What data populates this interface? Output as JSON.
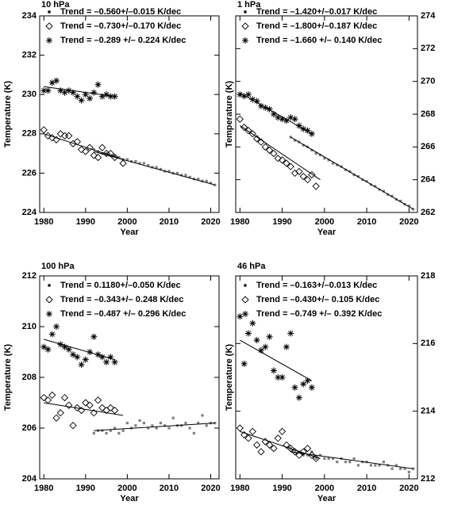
{
  "chart_data": [
    {
      "type": "scatter",
      "title": "10 hPa",
      "xlabel": "Year",
      "ylabel": "Temperature (K)",
      "y_axis_side": "left",
      "xlim": [
        1979,
        2022
      ],
      "xticks": [
        1980,
        1990,
        2000,
        2010,
        2020
      ],
      "ylim": [
        224,
        234
      ],
      "yticks": [
        224,
        226,
        228,
        230,
        232,
        234
      ],
      "series": [
        {
          "name": "Trend = –0.560+/–0.015 K/dec",
          "color": "#555555",
          "marker": "dot",
          "marker_color": "#808080",
          "x": [
            1992,
            1993,
            1994,
            1995,
            1996,
            1997,
            1998,
            1999,
            2000,
            2001,
            2002,
            2003,
            2004,
            2005,
            2006,
            2007,
            2008,
            2009,
            2010,
            2011,
            2012,
            2013,
            2014,
            2015,
            2016,
            2017,
            2018,
            2019,
            2020,
            2021
          ],
          "values": [
            227.2,
            227.1,
            227.0,
            227.0,
            226.9,
            226.9,
            226.8,
            226.7,
            226.7,
            226.6,
            226.6,
            226.5,
            226.5,
            226.4,
            226.3,
            226.3,
            226.2,
            226.1,
            226.1,
            226.0,
            226.0,
            225.9,
            225.9,
            225.8,
            225.7,
            225.7,
            225.6,
            225.6,
            225.5,
            225.4
          ],
          "fit_x": [
            1992,
            2021
          ],
          "fit": [
            227.1,
            225.4
          ]
        },
        {
          "name": "Trend = –0.730+/–0.170 K/dec",
          "color": "#a0a0a0",
          "marker": "diamond",
          "marker_color": "#000000",
          "x": [
            1980,
            1981,
            1982,
            1983,
            1984,
            1985,
            1986,
            1987,
            1988,
            1989,
            1990,
            1991,
            1992,
            1993,
            1994,
            1995,
            1996,
            1997,
            1999
          ],
          "values": [
            228.2,
            227.9,
            227.8,
            227.7,
            228.0,
            227.9,
            227.9,
            227.5,
            227.6,
            227.2,
            227.1,
            227.3,
            226.9,
            226.8,
            227.3,
            227.0,
            227.0,
            226.8,
            226.5
          ],
          "fit_x": [
            1980,
            1999
          ],
          "fit": [
            228.0,
            226.7
          ]
        },
        {
          "name": "Trend = –0.289 +/– 0.224 K/dec",
          "color": "#000000",
          "marker": "asterisk",
          "marker_color": "#000000",
          "x": [
            1980,
            1981,
            1982,
            1983,
            1984,
            1985,
            1986,
            1987,
            1988,
            1989,
            1990,
            1991,
            1992,
            1993,
            1994,
            1995,
            1996,
            1997
          ],
          "values": [
            230.2,
            230.2,
            230.6,
            230.7,
            230.2,
            230.1,
            230.2,
            230.1,
            229.9,
            229.7,
            230.0,
            229.8,
            230.1,
            230.5,
            229.9,
            230.0,
            229.9,
            229.9
          ],
          "fit_x": [
            1980,
            1997
          ],
          "fit": [
            230.4,
            229.9
          ]
        }
      ]
    },
    {
      "type": "scatter",
      "title": "1 hPa",
      "xlabel": "Year",
      "ylabel": "Temperature (K)",
      "y_axis_side": "right",
      "xlim": [
        1979,
        2022
      ],
      "xticks": [
        1980,
        1990,
        2000,
        2010,
        2020
      ],
      "ylim": [
        262,
        274
      ],
      "yticks": [
        262,
        264,
        266,
        268,
        270,
        272,
        274
      ],
      "series": [
        {
          "name": "Trend = –1.420+/–0.017 K/dec",
          "color": "#555555",
          "marker": "dot",
          "marker_color": "#808080",
          "x": [
            1992,
            1993,
            1994,
            1995,
            1996,
            1997,
            1998,
            1999,
            2000,
            2001,
            2002,
            2003,
            2004,
            2005,
            2006,
            2007,
            2008,
            2009,
            2010,
            2011,
            2012,
            2013,
            2014,
            2015,
            2016,
            2017,
            2018,
            2019,
            2020,
            2021
          ],
          "values": [
            266.6,
            266.4,
            266.3,
            266.1,
            266.0,
            265.8,
            265.6,
            265.5,
            265.3,
            265.2,
            265.0,
            264.9,
            264.8,
            264.6,
            264.5,
            264.3,
            264.2,
            264.0,
            263.9,
            263.7,
            263.6,
            263.4,
            263.3,
            263.1,
            263.0,
            262.8,
            262.7,
            262.5,
            262.4,
            262.2
          ],
          "fit_x": [
            1992,
            2021
          ],
          "fit": [
            266.6,
            262.2
          ]
        },
        {
          "name": "Trend = –1.800+/–0.187 K/dec",
          "color": "#a0a0a0",
          "marker": "diamond",
          "marker_color": "#000000",
          "x": [
            1980,
            1981,
            1982,
            1983,
            1984,
            1985,
            1986,
            1987,
            1988,
            1989,
            1990,
            1991,
            1992,
            1993,
            1994,
            1995,
            1996,
            1997,
            1998
          ],
          "values": [
            267.7,
            267.2,
            267.0,
            266.8,
            266.5,
            266.3,
            266.0,
            265.8,
            265.6,
            265.3,
            265.2,
            265.0,
            264.8,
            264.4,
            264.5,
            264.2,
            264.0,
            264.3,
            263.6
          ],
          "fit_x": [
            1980,
            1999
          ],
          "fit": [
            267.3,
            264.0
          ]
        },
        {
          "name": "Trend = –1.660 +/– 0.140 K/dec",
          "color": "#000000",
          "marker": "asterisk",
          "marker_color": "#000000",
          "x": [
            1980,
            1981,
            1982,
            1983,
            1984,
            1985,
            1986,
            1987,
            1988,
            1989,
            1990,
            1991,
            1992,
            1993,
            1994,
            1995,
            1996,
            1997
          ],
          "values": [
            269.2,
            269.1,
            269.2,
            268.9,
            268.8,
            268.5,
            268.4,
            268.3,
            268.0,
            267.8,
            267.7,
            267.6,
            267.8,
            267.7,
            267.3,
            267.1,
            267.0,
            266.8
          ],
          "fit_x": [
            1980,
            1997
          ],
          "fit": [
            269.3,
            266.8
          ]
        }
      ]
    },
    {
      "type": "scatter",
      "title": "100 hPa",
      "xlabel": "Year",
      "ylabel": "Temperature (K)",
      "y_axis_side": "left",
      "xlim": [
        1979,
        2022
      ],
      "xticks": [
        1980,
        1990,
        2000,
        2010,
        2020
      ],
      "ylim": [
        204,
        212
      ],
      "yticks": [
        204,
        206,
        208,
        210,
        212
      ],
      "series": [
        {
          "name": "Trend = 0.1180+/–0.050 K/dec",
          "color": "#555555",
          "marker": "dot",
          "marker_color": "#808080",
          "x": [
            1992,
            1993,
            1994,
            1995,
            1996,
            1997,
            1998,
            1999,
            2000,
            2001,
            2002,
            2003,
            2004,
            2005,
            2006,
            2007,
            2008,
            2009,
            2010,
            2011,
            2012,
            2013,
            2014,
            2015,
            2016,
            2017,
            2018,
            2019,
            2020,
            2021
          ],
          "values": [
            205.8,
            205.9,
            205.9,
            205.8,
            205.9,
            206.0,
            205.8,
            205.9,
            206.2,
            206.0,
            206.1,
            206.3,
            206.2,
            206.0,
            206.1,
            206.0,
            206.2,
            206.1,
            206.0,
            206.4,
            206.1,
            206.1,
            206.2,
            206.0,
            205.8,
            206.2,
            206.5,
            206.1,
            206.2,
            206.2
          ],
          "fit_x": [
            1992,
            2021
          ],
          "fit": [
            205.9,
            206.2
          ]
        },
        {
          "name": "Trend = –0.343+/– 0.248 K/dec",
          "color": "#a0a0a0",
          "marker": "diamond",
          "marker_color": "#000000",
          "x": [
            1980,
            1981,
            1982,
            1983,
            1984,
            1985,
            1986,
            1987,
            1988,
            1989,
            1990,
            1991,
            1992,
            1993,
            1994,
            1995,
            1996,
            1997
          ],
          "values": [
            207.2,
            207.1,
            207.3,
            206.4,
            206.6,
            207.2,
            206.9,
            206.1,
            206.8,
            206.7,
            207.0,
            206.9,
            206.6,
            207.1,
            206.8,
            206.7,
            206.8,
            206.7
          ],
          "fit_x": [
            1980,
            1999
          ],
          "fit": [
            207.0,
            206.5
          ]
        },
        {
          "name": "Trend = –0.487 +/– 0.296 K/dec",
          "color": "#000000",
          "marker": "asterisk",
          "marker_color": "#000000",
          "x": [
            1980,
            1981,
            1982,
            1983,
            1984,
            1985,
            1986,
            1987,
            1988,
            1989,
            1990,
            1991,
            1992,
            1993,
            1994,
            1995,
            1996,
            1997
          ],
          "values": [
            209.2,
            209.1,
            209.7,
            210.0,
            209.3,
            209.2,
            209.1,
            208.9,
            208.8,
            208.5,
            208.7,
            209.0,
            209.6,
            208.9,
            208.8,
            208.6,
            208.8,
            208.6
          ],
          "fit_x": [
            1980,
            1997
          ],
          "fit": [
            209.5,
            208.7
          ]
        }
      ]
    },
    {
      "type": "scatter",
      "title": "46 hPa",
      "xlabel": "Year",
      "ylabel": "Temperature (K)",
      "y_axis_side": "right",
      "xlim": [
        1979,
        2022
      ],
      "xticks": [
        1980,
        1990,
        2000,
        2010,
        2020
      ],
      "ylim": [
        212,
        218
      ],
      "yticks": [
        212,
        214,
        216,
        218
      ],
      "series": [
        {
          "name": "Trend = –0.163+/–0.013 K/dec",
          "color": "#555555",
          "marker": "dot",
          "marker_color": "#808080",
          "x": [
            1992,
            1993,
            1994,
            1995,
            1996,
            1997,
            1998,
            1999,
            2000,
            2001,
            2002,
            2003,
            2004,
            2005,
            2006,
            2007,
            2008,
            2009,
            2010,
            2011,
            2012,
            2013,
            2014,
            2015,
            2016,
            2017,
            2018,
            2019,
            2020,
            2021
          ],
          "values": [
            212.9,
            212.8,
            212.8,
            212.7,
            212.7,
            212.8,
            212.6,
            212.7,
            212.6,
            212.6,
            212.6,
            212.5,
            212.6,
            212.5,
            212.5,
            212.6,
            212.4,
            212.5,
            212.5,
            212.4,
            212.4,
            212.4,
            212.5,
            212.4,
            212.3,
            212.4,
            212.3,
            212.3,
            212.2,
            212.3
          ],
          "fit_x": [
            1992,
            2021
          ],
          "fit": [
            212.8,
            212.3
          ]
        },
        {
          "name": "Trend = –0.430+/– 0.105 K/dec",
          "color": "#a0a0a0",
          "marker": "diamond",
          "marker_color": "#000000",
          "x": [
            1980,
            1981,
            1982,
            1983,
            1984,
            1985,
            1986,
            1987,
            1988,
            1989,
            1990,
            1991,
            1992,
            1993,
            1994,
            1995,
            1996,
            1997,
            1998
          ],
          "values": [
            213.5,
            213.3,
            213.2,
            213.4,
            213.0,
            212.8,
            213.1,
            213.0,
            212.9,
            213.2,
            213.4,
            213.0,
            212.9,
            212.8,
            212.7,
            212.8,
            212.9,
            212.7,
            212.6
          ],
          "fit_x": [
            1980,
            1999
          ],
          "fit": [
            213.4,
            212.6
          ]
        },
        {
          "name": "Trend = –0.749 +/– 0.392 K/dec",
          "color": "#000000",
          "marker": "asterisk",
          "marker_color": "#000000",
          "x": [
            1980,
            1981,
            1982,
            1983,
            1984,
            1985,
            1986,
            1987,
            1988,
            1989,
            1990,
            1991,
            1992,
            1993,
            1994,
            1995,
            1996,
            1997
          ],
          "values": [
            216.8,
            215.4,
            216.3,
            216.6,
            216.1,
            215.8,
            215.9,
            216.2,
            215.2,
            215.0,
            215.0,
            215.9,
            216.3,
            214.7,
            214.4,
            214.8,
            214.9,
            214.7
          ],
          "fit_x": [
            1980,
            1997
          ],
          "fit": [
            216.1,
            214.9
          ]
        }
      ]
    }
  ]
}
